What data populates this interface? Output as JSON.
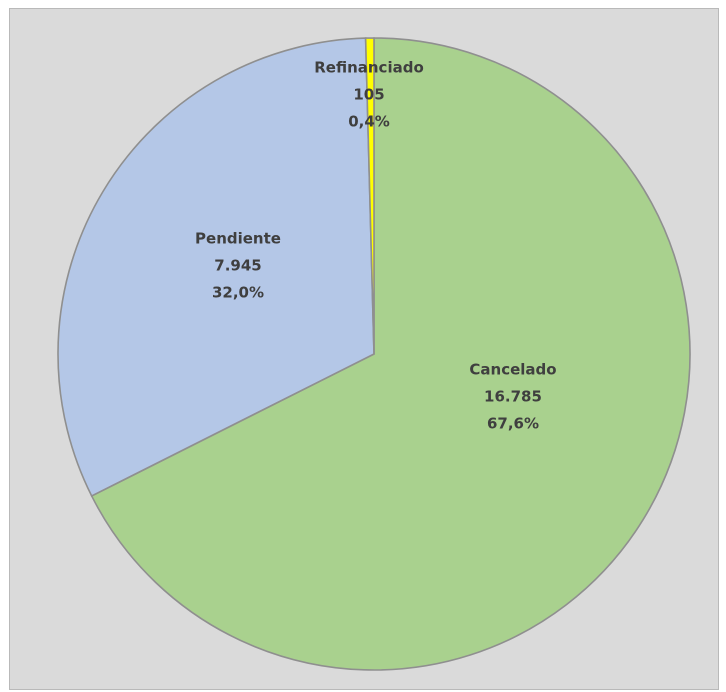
{
  "chart_data": {
    "type": "pie",
    "title": "",
    "slices": [
      {
        "name": "Cancelado",
        "value": 16785,
        "value_label": "16.785",
        "percent_label": "67,6%",
        "color": "#a9d18e"
      },
      {
        "name": "Pendiente",
        "value": 7945,
        "value_label": "7.945",
        "percent_label": "32,0%",
        "color": "#b4c7e7"
      },
      {
        "name": "Refinanciado",
        "value": 105,
        "value_label": "105",
        "percent_label": "0,4%",
        "color": "#ffff00"
      }
    ],
    "start_angle": "top (12 o'clock)",
    "direction": "clockwise",
    "background_color": "#dadada",
    "legend": "none"
  }
}
